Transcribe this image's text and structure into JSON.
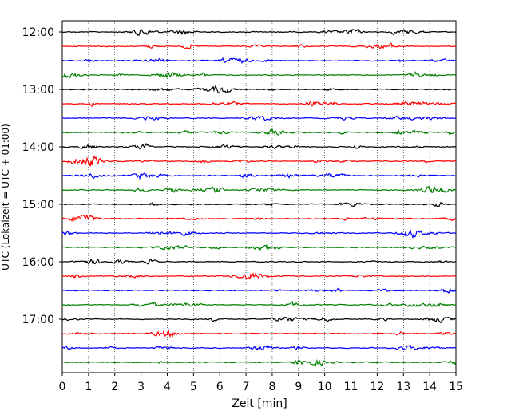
{
  "chart_data": {
    "type": "line",
    "title": "",
    "xlabel": "Zeit  [min]",
    "ylabel": "UTC (Lokalzeit = UTC + 01:00)",
    "xlim": [
      0,
      15
    ],
    "xticks": [
      0,
      1,
      2,
      3,
      4,
      5,
      6,
      7,
      8,
      9,
      10,
      11,
      12,
      13,
      14,
      15
    ],
    "xtick_labels": [
      "0",
      "1",
      "2",
      "3",
      "4",
      "5",
      "6",
      "7",
      "8",
      "9",
      "10",
      "11",
      "12",
      "13",
      "14",
      "15"
    ],
    "ytick_labels": [
      "12:00",
      "13:00",
      "14:00",
      "15:00",
      "16:00",
      "17:00"
    ],
    "traces_per_hour": 4,
    "trace_minutes": 15,
    "trace_count": 24,
    "trace_colors": [
      "#000000",
      "#ff0000",
      "#0000ff",
      "#007f00"
    ],
    "grid": "vertical dotted",
    "legend": "none"
  }
}
